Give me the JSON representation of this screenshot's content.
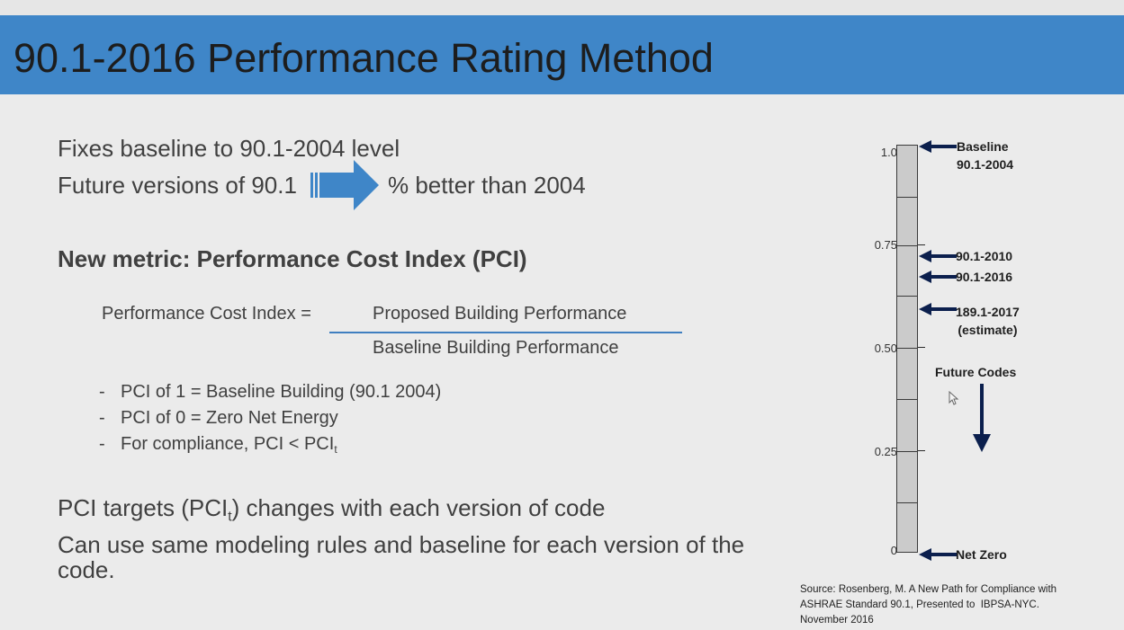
{
  "title": "90.1-2016 Performance Rating Method",
  "intro": {
    "line1": "Fixes baseline to 90.1-2004 level",
    "line2_left": "Future versions of 90.1",
    "line2_right": "% better than 2004"
  },
  "metric_heading": "New metric: Performance Cost Index (PCI)",
  "formula": {
    "lhs": "Performance Cost Index =",
    "numerator": "Proposed Building Performance",
    "denominator": "Baseline Building Performance"
  },
  "bullets": [
    {
      "dash": "-",
      "text": "PCI of 1 = Baseline Building (90.1 2004)"
    },
    {
      "dash": "-",
      "text": "PCI of 0 = Zero Net Energy"
    },
    {
      "dash": "-",
      "text": "For compliance, PCI < PCI",
      "sub": "t"
    }
  ],
  "targets": {
    "pre": "PCI targets (PCI",
    "sub": "t",
    "post": ") changes with each version of code"
  },
  "closing": "Can use same modeling rules and baseline for each version of the code.",
  "scale": {
    "ticks": [
      "1.0",
      "0.75",
      "0.50",
      "0.25",
      "0"
    ],
    "pointers": [
      {
        "label": "Baseline\n90.1-2004",
        "value": 1.0
      },
      {
        "label": "90.1-2010",
        "value": 0.75
      },
      {
        "label": "90.1-2016",
        "value": 0.7
      },
      {
        "label": "189.1-2017\n(estimate)",
        "value": 0.61
      },
      {
        "label": "Net Zero",
        "value": 0
      }
    ],
    "future_label": "Future Codes"
  },
  "source": "Source: Rosenberg, M. A New Path for Compliance with\nASHRAE Standard 90.1, Presented to  IBPSA-NYC.\nNovember 2016",
  "colors": {
    "titlebar": "#3f86c8",
    "arrow": "#3f86c8",
    "pointer": "#0b1f4d"
  }
}
